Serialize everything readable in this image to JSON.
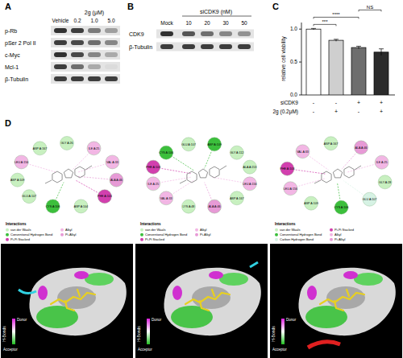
{
  "panel_labels": [
    "A",
    "B",
    "C",
    "D"
  ],
  "blot_a": {
    "header": "2g (μM)",
    "lanes": [
      "Vehicle",
      "0.2",
      "1.0",
      "5.0"
    ],
    "rows": [
      {
        "name": "p-Rb",
        "intensity": [
          0.85,
          0.8,
          0.55,
          0.4
        ]
      },
      {
        "name": "pSer 2 Pol II",
        "intensity": [
          0.8,
          0.75,
          0.6,
          0.5
        ]
      },
      {
        "name": "c-Myc",
        "intensity": [
          0.85,
          0.75,
          0.5,
          0.35
        ]
      },
      {
        "name": "Mcl-1",
        "intensity": [
          0.8,
          0.6,
          0.35,
          0.15
        ]
      },
      {
        "name": "β-Tubulin",
        "intensity": [
          0.8,
          0.8,
          0.8,
          0.8
        ]
      }
    ]
  },
  "blot_b": {
    "header": "siCDK9 (nM)",
    "lanes": [
      "Mock",
      "10",
      "20",
      "30",
      "50"
    ],
    "rows": [
      {
        "name": "CDK9",
        "intensity": [
          0.85,
          0.7,
          0.6,
          0.5,
          0.45
        ]
      },
      {
        "name": "β-Tubulin",
        "intensity": [
          0.8,
          0.8,
          0.8,
          0.8,
          0.8
        ]
      }
    ]
  },
  "chart_data": {
    "type": "bar",
    "y_label": "relative cell viability",
    "categories": [
      null,
      null,
      null,
      null
    ],
    "values": [
      1.0,
      0.83,
      0.72,
      0.65
    ],
    "errors": [
      0.01,
      0.015,
      0.02,
      0.05
    ],
    "colors": [
      "#ffffff",
      "#cfcfcf",
      "#6e6e6e",
      "#2b2b2b"
    ],
    "ylim": [
      0,
      1.1
    ],
    "yticks": [
      {
        "value": 0,
        "label": "0.0"
      },
      {
        "value": 0.5,
        "label": "0.5"
      },
      {
        "value": 1,
        "label": "1.0"
      }
    ],
    "condition_rows": [
      {
        "name": "siCDK9",
        "marks": [
          "-",
          "-",
          "+",
          "+"
        ]
      },
      {
        "name": "2g (0.2μM)",
        "marks": [
          "-",
          "+",
          "-",
          "+"
        ]
      }
    ],
    "significance": [
      {
        "from": 0,
        "to": 1,
        "label": "***"
      },
      {
        "from": 0,
        "to": 2,
        "label": "****"
      },
      {
        "from": 2,
        "to": 3,
        "label": "NS"
      }
    ]
  },
  "docking": {
    "legend_title": "Interactions",
    "surface_legend": {
      "title": "H-Bonds",
      "top": "Donor",
      "bottom": "Acceptor"
    },
    "panels": [
      {
        "legend": [
          {
            "name": "van der Waals",
            "color": "#c8f0c0"
          },
          {
            "name": "Conventional Hydrogen Bond",
            "color": "#3cbf3c"
          },
          {
            "name": "Pi-Pi Stacked",
            "color": "#d23fae"
          },
          {
            "name": "Alkyl",
            "color": "#f2b6e4"
          },
          {
            "name": "Pi-Alkyl",
            "color": "#e79ad6"
          }
        ],
        "residues": [
          {
            "label": "GLY A:26",
            "type": "van der Waals"
          },
          {
            "label": "ILE A:25",
            "type": "Alkyl"
          },
          {
            "label": "VAL A:33",
            "type": "Alkyl"
          },
          {
            "label": "ALA A:46",
            "type": "Pi-Alkyl"
          },
          {
            "label": "PHE A:103",
            "type": "Pi-Pi Stacked"
          },
          {
            "label": "ASP A:104",
            "type": "van der Waals"
          },
          {
            "label": "CYS A:106",
            "type": "Conventional Hydrogen Bond"
          },
          {
            "label": "GLU A:107",
            "type": "van der Waals"
          },
          {
            "label": "ASP A:109",
            "type": "van der Waals"
          },
          {
            "label": "LEU A:156",
            "type": "Alkyl"
          },
          {
            "label": "ASP A:167",
            "type": "van der Waals"
          }
        ]
      },
      {
        "legend": [
          {
            "name": "van der Waals",
            "color": "#c8f0c0"
          },
          {
            "name": "Conventional Hydrogen Bond",
            "color": "#3cbf3c"
          },
          {
            "name": "Pi-Pi Stacked",
            "color": "#d23fae"
          },
          {
            "name": "Alkyl",
            "color": "#f2b6e4"
          },
          {
            "name": "Pi-Alkyl",
            "color": "#e79ad6"
          }
        ],
        "residues": [
          {
            "label": "ASP A:109",
            "type": "Conventional Hydrogen Bond"
          },
          {
            "label": "GLY A:112",
            "type": "van der Waals"
          },
          {
            "label": "ALA A:153",
            "type": "van der Waals"
          },
          {
            "label": "LEU A:156",
            "type": "Alkyl"
          },
          {
            "label": "ASP A:167",
            "type": "van der Waals"
          },
          {
            "label": "ALA A:46",
            "type": "Pi-Alkyl"
          },
          {
            "label": "LYS A:48",
            "type": "van der Waals"
          },
          {
            "label": "VAL A:33",
            "type": "Alkyl"
          },
          {
            "label": "ILE A:25",
            "type": "Alkyl"
          },
          {
            "label": "PHE A:103",
            "type": "Pi-Pi Stacked"
          },
          {
            "label": "CYS A:106",
            "type": "Conventional Hydrogen Bond"
          },
          {
            "label": "GLU A:107",
            "type": "van der Waals"
          }
        ]
      },
      {
        "legend": [
          {
            "name": "van der Waals",
            "color": "#c8f0c0"
          },
          {
            "name": "Conventional Hydrogen Bond",
            "color": "#3cbf3c"
          },
          {
            "name": "Carbon Hydrogen Bond",
            "color": "#d6f2e4"
          },
          {
            "name": "Pi-Pi Stacked",
            "color": "#d23fae"
          },
          {
            "name": "Alkyl",
            "color": "#f2b6e4"
          },
          {
            "name": "Pi-Alkyl",
            "color": "#e79ad6"
          }
        ],
        "residues": [
          {
            "label": "ALA A:46",
            "type": "Pi-Alkyl"
          },
          {
            "label": "ILE A:25",
            "type": "Alkyl"
          },
          {
            "label": "GLY A:28",
            "type": "van der Waals"
          },
          {
            "label": "GLU A:107",
            "type": "Carbon Hydrogen Bond"
          },
          {
            "label": "CYS A:106",
            "type": "Conventional Hydrogen Bond"
          },
          {
            "label": "ASP A:109",
            "type": "van der Waals"
          },
          {
            "label": "LEU A:156",
            "type": "Alkyl"
          },
          {
            "label": "PHE A:103",
            "type": "Pi-Pi Stacked"
          },
          {
            "label": "VAL A:33",
            "type": "Alkyl"
          },
          {
            "label": "ASP A:167",
            "type": "van der Waals"
          }
        ]
      }
    ]
  }
}
